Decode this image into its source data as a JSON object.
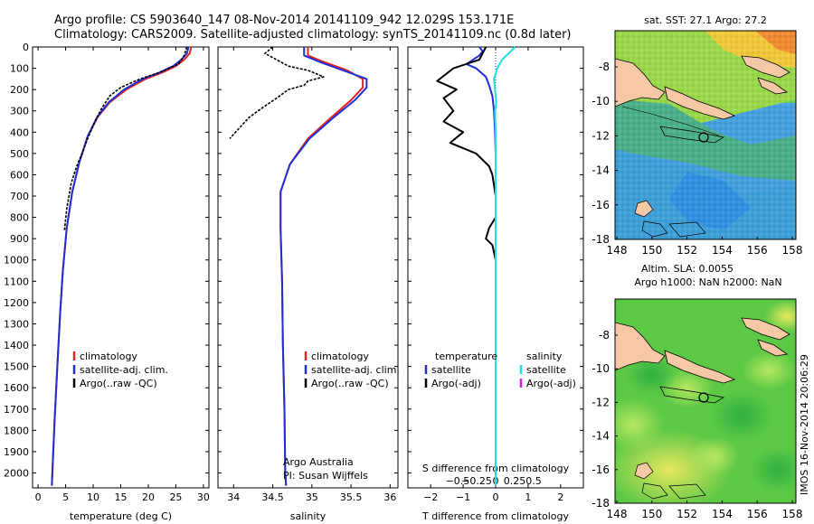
{
  "header": {
    "line1": "Argo profile: CS 5903640_147 08-Nov-2014 20141109_942 12.029S 153.171E",
    "line2": "Climatology: CARS2009. Satellite-adjusted climatology: synTS_20141109.nc (0.8d later)"
  },
  "colors": {
    "climatology": "#e8231e",
    "satellite": "#1f2fd8",
    "argo": "#000000",
    "satellite_s": "#22e0e0",
    "argo_s": "#e020e0"
  },
  "chart_data": [
    {
      "id": "temperature",
      "type": "line",
      "xlabel": "temperature (deg C)",
      "xlim": [
        -1,
        31
      ],
      "xticks": [
        0,
        5,
        10,
        15,
        20,
        25,
        30
      ],
      "xtick_labels": [
        "0",
        "5",
        "10",
        "15",
        "20",
        "25",
        "30"
      ],
      "ylim": [
        0,
        2070
      ],
      "yticks": [
        0,
        100,
        200,
        300,
        400,
        500,
        600,
        700,
        800,
        900,
        1000,
        1100,
        1200,
        1300,
        1400,
        1500,
        1600,
        1700,
        1800,
        1900,
        2000
      ],
      "ytick_labels": [
        "0",
        "100",
        "200",
        "300",
        "400",
        "500",
        "600",
        "700",
        "800",
        "900",
        "1000",
        "1100",
        "1200",
        "1300",
        "1400",
        "1500",
        "1600",
        "1700",
        "1800",
        "1900",
        "2000"
      ],
      "legend": [
        "climatology",
        "satellite-adj. clim.",
        "Argo(..raw -QC)"
      ],
      "series": [
        {
          "name": "climatology",
          "color_key": "climatology",
          "points": [
            [
              27.8,
              0
            ],
            [
              27.5,
              30
            ],
            [
              26.5,
              60
            ],
            [
              25.0,
              90
            ],
            [
              22.5,
              120
            ],
            [
              19.5,
              150
            ],
            [
              16.0,
              200
            ],
            [
              13.0,
              260
            ],
            [
              10.8,
              330
            ],
            [
              9.0,
              420
            ],
            [
              7.5,
              540
            ],
            [
              6.2,
              680
            ],
            [
              5.2,
              850
            ],
            [
              4.5,
              1050
            ],
            [
              4.0,
              1250
            ],
            [
              3.5,
              1500
            ],
            [
              3.0,
              1750
            ],
            [
              2.6,
              2000
            ],
            [
              2.5,
              2060
            ]
          ]
        },
        {
          "name": "satellite-adj. clim.",
          "color_key": "satellite",
          "points": [
            [
              27.3,
              0
            ],
            [
              27.0,
              30
            ],
            [
              26.0,
              60
            ],
            [
              24.5,
              90
            ],
            [
              22.0,
              120
            ],
            [
              19.0,
              150
            ],
            [
              15.6,
              200
            ],
            [
              12.8,
              260
            ],
            [
              10.7,
              330
            ],
            [
              9.0,
              420
            ],
            [
              7.5,
              540
            ],
            [
              6.2,
              680
            ],
            [
              5.2,
              850
            ],
            [
              4.5,
              1050
            ],
            [
              4.0,
              1250
            ],
            [
              3.5,
              1500
            ],
            [
              3.0,
              1750
            ],
            [
              2.6,
              2000
            ],
            [
              2.5,
              2060
            ]
          ]
        },
        {
          "name": "Argo(..raw -QC)",
          "color_key": "argo",
          "points": [
            [
              27.0,
              0
            ],
            [
              26.5,
              40
            ],
            [
              25.5,
              80
            ],
            [
              22.0,
              120
            ],
            [
              18.5,
              150
            ],
            [
              15.0,
              190
            ],
            [
              13.0,
              230
            ],
            [
              11.5,
              290
            ],
            [
              10.3,
              350
            ],
            [
              9.0,
              430
            ],
            [
              8.0,
              500
            ],
            [
              7.0,
              560
            ],
            [
              6.0,
              640
            ],
            [
              5.2,
              760
            ],
            [
              4.8,
              860
            ]
          ]
        }
      ],
      "annotations": []
    },
    {
      "id": "salinity",
      "type": "line",
      "xlabel": "salinity",
      "xlim": [
        33.8,
        36.1
      ],
      "xticks": [
        34,
        34.5,
        35,
        35.5,
        36
      ],
      "xtick_labels": [
        "34",
        "34.5",
        "35",
        "35.5",
        "36"
      ],
      "ylim": [
        0,
        2070
      ],
      "yticks": [
        0,
        100,
        200,
        300,
        400,
        500,
        600,
        700,
        800,
        900,
        1000,
        1100,
        1200,
        1300,
        1400,
        1500,
        1600,
        1700,
        1800,
        1900,
        2000
      ],
      "legend": [
        "climatology",
        "satellite-adj. clim.",
        "Argo(..raw -QC)"
      ],
      "series": [
        {
          "name": "climatology",
          "color_key": "climatology",
          "points": [
            [
              34.95,
              0
            ],
            [
              34.95,
              40
            ],
            [
              35.15,
              70
            ],
            [
              35.45,
              110
            ],
            [
              35.65,
              150
            ],
            [
              35.65,
              190
            ],
            [
              35.5,
              250
            ],
            [
              35.25,
              330
            ],
            [
              34.95,
              430
            ],
            [
              34.72,
              550
            ],
            [
              34.6,
              680
            ],
            [
              34.6,
              850
            ],
            [
              34.62,
              1100
            ],
            [
              34.63,
              1400
            ],
            [
              34.65,
              1700
            ],
            [
              34.66,
              2000
            ],
            [
              34.67,
              2060
            ]
          ]
        },
        {
          "name": "satellite-adj. clim.",
          "color_key": "satellite",
          "points": [
            [
              34.9,
              0
            ],
            [
              34.9,
              40
            ],
            [
              35.1,
              70
            ],
            [
              35.4,
              110
            ],
            [
              35.7,
              150
            ],
            [
              35.7,
              190
            ],
            [
              35.55,
              250
            ],
            [
              35.28,
              330
            ],
            [
              34.97,
              430
            ],
            [
              34.72,
              550
            ],
            [
              34.6,
              680
            ],
            [
              34.6,
              850
            ],
            [
              34.62,
              1100
            ],
            [
              34.63,
              1400
            ],
            [
              34.65,
              1700
            ],
            [
              34.66,
              2000
            ],
            [
              34.67,
              2060
            ]
          ]
        },
        {
          "name": "Argo(..raw -QC)",
          "color_key": "argo",
          "points": [
            [
              34.5,
              0
            ],
            [
              34.4,
              30
            ],
            [
              34.55,
              60
            ],
            [
              34.7,
              90
            ],
            [
              34.95,
              110
            ],
            [
              35.15,
              140
            ],
            [
              34.95,
              160
            ],
            [
              34.9,
              180
            ],
            [
              34.7,
              200
            ],
            [
              34.55,
              240
            ],
            [
              34.35,
              290
            ],
            [
              34.2,
              330
            ],
            [
              34.05,
              390
            ],
            [
              33.95,
              430
            ]
          ]
        }
      ],
      "annotations": [
        "Argo Australia",
        "PI: Susan Wijffels"
      ]
    },
    {
      "id": "differences",
      "type": "line",
      "xlabel": "T difference from climatology",
      "xlim": [
        -2.7,
        2.7
      ],
      "xticks": [
        -2,
        -1,
        0,
        1,
        2
      ],
      "xtick_labels": [
        "−2",
        "−1",
        "0",
        "1",
        "2"
      ],
      "top_xlabel": "S difference from climatology",
      "top_xticks": [
        -0.5,
        -0.25,
        0,
        0.25,
        0.5
      ],
      "top_xtick_labels": [
        "−0.5",
        "−0.25",
        "0",
        "0.25",
        "0.5"
      ],
      "ylim": [
        0,
        2070
      ],
      "yticks": [
        0,
        100,
        200,
        300,
        400,
        500,
        600,
        700,
        800,
        900,
        1000,
        1100,
        1200,
        1300,
        1400,
        1500,
        1600,
        1700,
        1800,
        1900,
        2000
      ],
      "legend_left": {
        "title": "temperature",
        "items": [
          "satellite",
          "Argo(-adj)"
        ]
      },
      "legend_right": {
        "title": "salinity",
        "items": [
          "satellite",
          "Argo(-adj)"
        ]
      },
      "series": [
        {
          "name": "temperature satellite",
          "color_key": "satellite",
          "points": [
            [
              -0.5,
              0
            ],
            [
              -0.4,
              20
            ],
            [
              -0.5,
              40
            ],
            [
              -0.9,
              80
            ],
            [
              -0.6,
              100
            ],
            [
              -0.3,
              140
            ],
            [
              -0.2,
              180
            ],
            [
              -0.1,
              230
            ],
            [
              -0.05,
              300
            ],
            [
              -0.02,
              400
            ],
            [
              0,
              500
            ],
            [
              0,
              2060
            ]
          ]
        },
        {
          "name": "temperature Argo(-adj)",
          "color_key": "argo",
          "points": [
            [
              -0.3,
              0
            ],
            [
              -0.5,
              60
            ],
            [
              -1.3,
              100
            ],
            [
              -1.8,
              160
            ],
            [
              -1.2,
              200
            ],
            [
              -1.6,
              240
            ],
            [
              -1.3,
              300
            ],
            [
              -1.6,
              350
            ],
            [
              -1.0,
              400
            ],
            [
              -1.4,
              450
            ],
            [
              -0.6,
              500
            ],
            [
              -0.2,
              560
            ],
            [
              -0.1,
              600
            ],
            [
              0,
              700
            ],
            [
              0,
              800
            ],
            [
              -0.2,
              850
            ],
            [
              -0.3,
              900
            ],
            [
              -0.1,
              930
            ],
            [
              0,
              1000
            ]
          ]
        },
        {
          "name": "salinity satellite",
          "color_key": "satellite_s",
          "points": [
            [
              0.6,
              0
            ],
            [
              0.4,
              30
            ],
            [
              0.2,
              60
            ],
            [
              0.05,
              100
            ],
            [
              -0.05,
              150
            ],
            [
              -0.02,
              200
            ],
            [
              0.02,
              260
            ],
            [
              -0.02,
              300
            ],
            [
              0,
              400
            ],
            [
              0,
              2060
            ]
          ]
        },
        {
          "name": "salinity Argo(-adj)",
          "color_key": "argo_s",
          "points": []
        }
      ],
      "annotations": []
    }
  ],
  "maps": [
    {
      "title": "sat. SST: 27.1  Argo: 27.2",
      "x_ticks": [
        "148",
        "150",
        "152",
        "154",
        "156",
        "158"
      ],
      "y_ticks": [
        "-8",
        "-10",
        "-12",
        "-14",
        "-16",
        "-18"
      ],
      "marker": {
        "lon": 153.171,
        "lat": -12.029
      }
    },
    {
      "title1": "Altim. SLA: 0.0055",
      "title2": "Argo h1000: NaN h2000: NaN",
      "x_ticks": [
        "148",
        "150",
        "152",
        "154",
        "156",
        "158"
      ],
      "y_ticks": [
        "-8",
        "-10",
        "-12",
        "-14",
        "-16",
        "-18"
      ],
      "marker": {
        "lon": 153.171,
        "lat": -12.029
      }
    }
  ],
  "footer": "IMOS 16-Nov-2014 20:06:29"
}
